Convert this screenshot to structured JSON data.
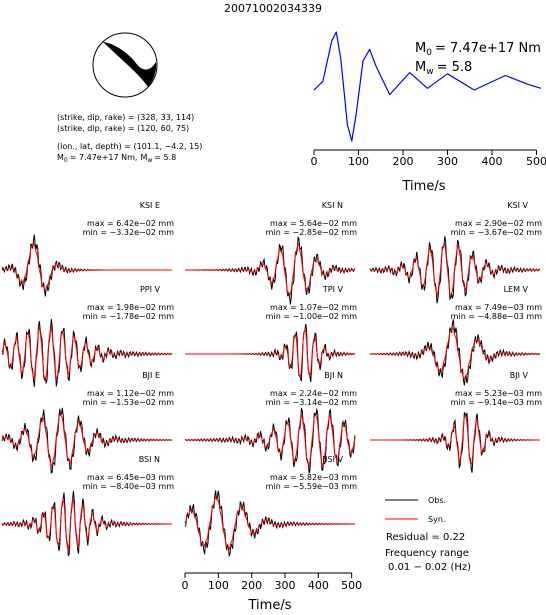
{
  "title": "20071002034339",
  "mechanism": {
    "lines": [
      "(strike, dip, rake) = (328, 33, 114)",
      "(strike, dip, rake) = (120, 60, 75)",
      "(lon., lat, depth) = (101.1, −4.2, 15)"
    ],
    "moment": {
      "symbol": "M",
      "subscript": "0",
      "text": "= 7.47e+17 Nm,"
    },
    "magnitude": {
      "symbol": "M",
      "subscript": "w",
      "text": "= 5.8"
    }
  },
  "chart_data": [
    {
      "type": "line",
      "color": "#0000ff",
      "x": [
        0,
        20,
        40,
        50,
        60,
        75,
        85,
        95,
        110,
        125,
        140,
        170,
        215,
        255,
        300,
        360,
        430,
        480,
        510
      ],
      "values": [
        0,
        0.15,
        0.85,
        1.0,
        0.55,
        -0.6,
        -0.88,
        -0.4,
        0.5,
        0.7,
        0.4,
        -0.08,
        0.3,
        0.03,
        0.28,
        0,
        0.25,
        0.1,
        0.03
      ],
      "xlim": [
        0,
        510
      ],
      "xticks": [
        0,
        100,
        200,
        300,
        400,
        500
      ],
      "xlabel": "Time/s",
      "annotations": [
        {
          "symbol": "M",
          "subscript": "0",
          "text": "= 7.47e+17 Nm"
        },
        {
          "symbol": "M",
          "subscript": "w",
          "text": "= 5.8"
        }
      ]
    },
    {
      "type": "waveforms",
      "panels": [
        {
          "station": "KSI E",
          "max": "max = 6.42e−02 mm",
          "min": "min = −3.32e−02 mm"
        },
        {
          "station": "KSI N",
          "max": "max = 5.64e−02 mm",
          "min": "min = −2.85e−02 mm"
        },
        {
          "station": "KSI V",
          "max": "max = 2.90e−02 mm",
          "min": "min = −3.67e−02 mm"
        },
        {
          "station": "PPI V",
          "max": "max = 1.98e−02 mm",
          "min": "min = −1.78e−02 mm"
        },
        {
          "station": "TPI V",
          "max": "max = 1.07e−02 mm",
          "min": "min = −1.00e−02 mm"
        },
        {
          "station": "LEM V",
          "max": "max = 7.49e−03 mm",
          "min": "min = −4.88e−03 mm"
        },
        {
          "station": "BJI E",
          "max": "max = 1.12e−02 mm",
          "min": "min = −1.53e−02 mm"
        },
        {
          "station": "BJI N",
          "max": "max = 2.24e−02 mm",
          "min": "min = −3.14e−02 mm"
        },
        {
          "station": "BJI V",
          "max": "max = 5.23e−03 mm",
          "min": "min = −9.14e−03 mm"
        },
        {
          "station": "BSI N",
          "max": "max = 6.45e−03 mm",
          "min": "min = −8.40e−03 mm"
        },
        {
          "station": "BSI V",
          "max": "max = 5.82e−03 mm",
          "min": "min = −5.59e−03 mm"
        }
      ],
      "xlim": [
        0,
        510
      ],
      "xticks": [
        0,
        100,
        200,
        300,
        400,
        500
      ],
      "xlabel": "Time/s",
      "legend": [
        {
          "name": "Obs.",
          "color": "#000000"
        },
        {
          "name": "Syn.",
          "color": "#ff0000"
        }
      ],
      "notes": [
        "Residual = 0.22",
        "Frequency range",
        "0.01 − 0.02 (Hz)"
      ]
    }
  ]
}
